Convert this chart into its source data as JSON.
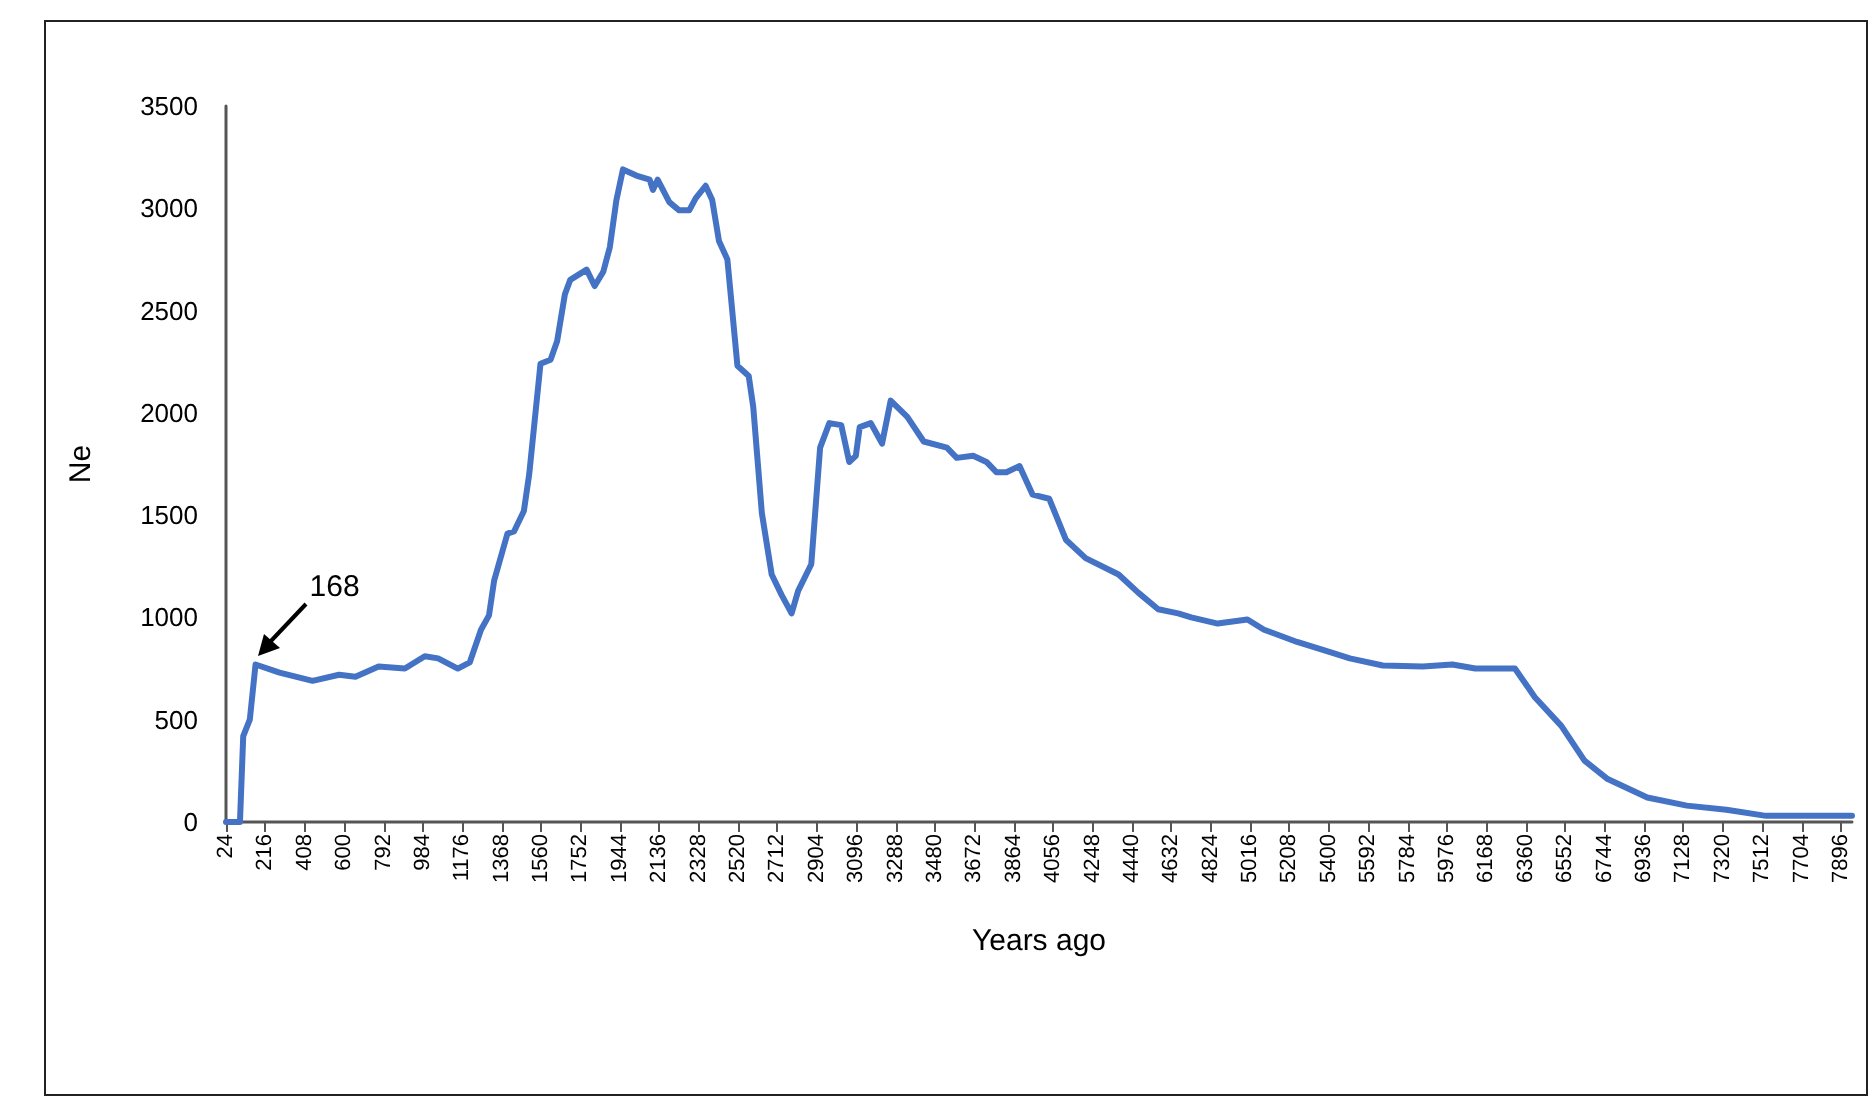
{
  "chart_data": {
    "type": "line",
    "xlabel": "Years ago",
    "ylabel": "Ne",
    "x": [
      24,
      92,
      108,
      140,
      168,
      285,
      446,
      575,
      655,
      768,
      896,
      993,
      1058,
      1154,
      1212,
      1267,
      1306,
      1331,
      1396,
      1428,
      1476,
      1502,
      1557,
      1606,
      1638,
      1676,
      1702,
      1782,
      1821,
      1863,
      1895,
      1927,
      1959,
      2024,
      2089,
      2105,
      2128,
      2185,
      2233,
      2282,
      2314,
      2362,
      2394,
      2427,
      2468,
      2517,
      2572,
      2594,
      2636,
      2684,
      2732,
      2781,
      2813,
      2877,
      2920,
      2965,
      3023,
      3062,
      3094,
      3113,
      3167,
      3222,
      3264,
      3345,
      3425,
      3538,
      3586,
      3666,
      3731,
      3779,
      3828,
      3892,
      3956,
      4037,
      4118,
      4214,
      4375,
      4472,
      4568,
      4665,
      4729,
      4858,
      5003,
      5084,
      5245,
      5406,
      5502,
      5663,
      5857,
      6002,
      6114,
      6307,
      6404,
      6533,
      6646,
      6759,
      6952,
      7145,
      7338,
      7531,
      7950
    ],
    "series": [
      {
        "color": "#4472c4",
        "values": [
          0,
          0,
          420,
          500,
          770,
          730,
          690,
          720,
          710,
          760,
          750,
          810,
          800,
          750,
          780,
          940,
          1010,
          1180,
          1410,
          1420,
          1520,
          1700,
          2240,
          2260,
          2350,
          2580,
          2650,
          2700,
          2620,
          2690,
          2810,
          3040,
          3190,
          3160,
          3140,
          3090,
          3140,
          3030,
          2990,
          2990,
          3050,
          3110,
          3040,
          2840,
          2750,
          2230,
          2180,
          2030,
          1510,
          1210,
          1110,
          1020,
          1130,
          1260,
          1830,
          1950,
          1940,
          1760,
          1790,
          1930,
          1950,
          1850,
          2060,
          1980,
          1860,
          1830,
          1780,
          1790,
          1760,
          1710,
          1710,
          1740,
          1600,
          1580,
          1380,
          1290,
          1210,
          1120,
          1040,
          1020,
          1000,
          970,
          990,
          940,
          880,
          830,
          800,
          765,
          760,
          770,
          750,
          750,
          610,
          470,
          300,
          210,
          120,
          80,
          60,
          30,
          30
        ]
      }
    ],
    "xlim": [
      24,
      7950
    ],
    "xticks": [
      24,
      216,
      408,
      600,
      792,
      984,
      1176,
      1368,
      1560,
      1752,
      1944,
      2136,
      2328,
      2520,
      2712,
      2904,
      3096,
      3288,
      3480,
      3672,
      3864,
      4056,
      4248,
      4440,
      4632,
      4824,
      5016,
      5208,
      5400,
      5592,
      5784,
      5976,
      6168,
      6360,
      6552,
      6744,
      6936,
      7128,
      7320,
      7512,
      7704,
      7896
    ],
    "ylim": [
      0,
      3500
    ],
    "yticks": [
      0,
      500,
      1000,
      1500,
      2000,
      2500,
      3000,
      3500
    ],
    "marker": "none",
    "line_style": "solid",
    "annotations": [
      {
        "text": "168",
        "x": 168,
        "y": 770
      }
    ]
  }
}
